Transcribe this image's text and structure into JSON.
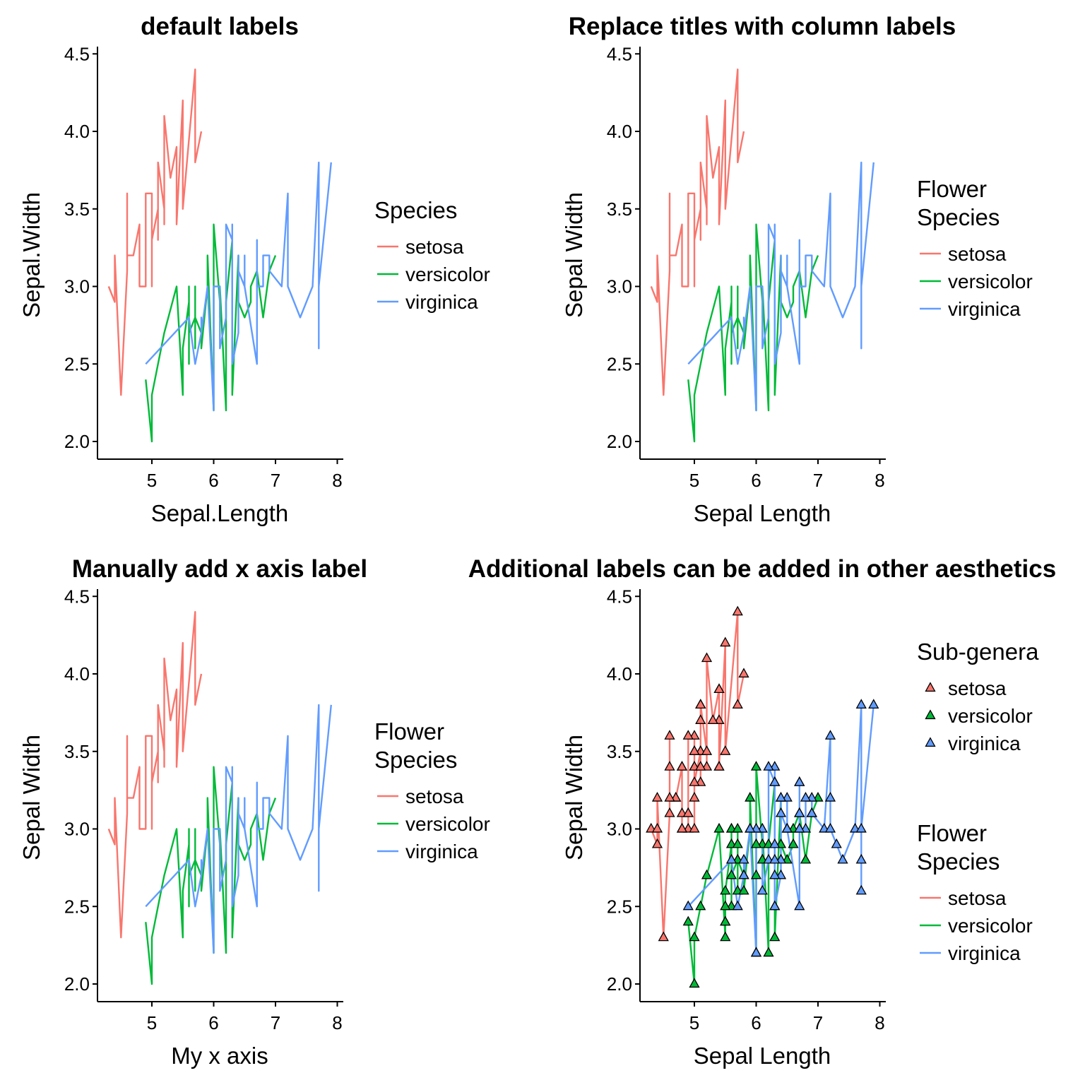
{
  "colors": {
    "setosa": "#F8766D",
    "versicolor": "#00BA38",
    "virginica": "#619CFF"
  },
  "species": [
    "setosa",
    "versicolor",
    "virginica"
  ],
  "chart_data": [
    {
      "type": "line",
      "title": "default labels",
      "xlabel": "Sepal.Length",
      "ylabel": "Sepal.Width",
      "xlim": [
        4.3,
        7.9
      ],
      "ylim": [
        2.0,
        4.4
      ],
      "x_ticks": [
        "5",
        "6",
        "7",
        "8"
      ],
      "y_ticks": [
        "2.0",
        "2.5",
        "3.0",
        "3.5",
        "4.0",
        "4.5"
      ],
      "points": false,
      "legend_position": "right",
      "legends": [
        {
          "title_lines": [
            "Species"
          ],
          "type": "line",
          "items": [
            "setosa",
            "versicolor",
            "virginica"
          ]
        }
      ]
    },
    {
      "type": "line",
      "title": "Replace titles with column labels",
      "xlabel": "Sepal Length",
      "ylabel": "Sepal Width",
      "xlim": [
        4.3,
        7.9
      ],
      "ylim": [
        2.0,
        4.4
      ],
      "x_ticks": [
        "5",
        "6",
        "7",
        "8"
      ],
      "y_ticks": [
        "2.0",
        "2.5",
        "3.0",
        "3.5",
        "4.0",
        "4.5"
      ],
      "points": false,
      "legend_position": "right",
      "legends": [
        {
          "title_lines": [
            "Flower",
            "Species"
          ],
          "type": "line",
          "items": [
            "setosa",
            "versicolor",
            "virginica"
          ]
        }
      ]
    },
    {
      "type": "line",
      "title": "Manually add x axis label",
      "xlabel": "My x axis",
      "ylabel": "Sepal Width",
      "xlim": [
        4.3,
        7.9
      ],
      "ylim": [
        2.0,
        4.4
      ],
      "x_ticks": [
        "5",
        "6",
        "7",
        "8"
      ],
      "y_ticks": [
        "2.0",
        "2.5",
        "3.0",
        "3.5",
        "4.0",
        "4.5"
      ],
      "points": false,
      "legend_position": "right",
      "legends": [
        {
          "title_lines": [
            "Flower",
            "Species"
          ],
          "type": "line",
          "items": [
            "setosa",
            "versicolor",
            "virginica"
          ]
        }
      ]
    },
    {
      "type": "line",
      "title": "Additional labels can be added in other aesthetics",
      "xlabel": "Sepal Length",
      "ylabel": "Sepal Width",
      "xlim": [
        4.3,
        7.9
      ],
      "ylim": [
        2.0,
        4.4
      ],
      "x_ticks": [
        "5",
        "6",
        "7",
        "8"
      ],
      "y_ticks": [
        "2.0",
        "2.5",
        "3.0",
        "3.5",
        "4.0",
        "4.5"
      ],
      "points": true,
      "point_shape": "triangle",
      "legend_position": "right",
      "legends": [
        {
          "title_lines": [
            "Sub-genera"
          ],
          "type": "triangle",
          "items": [
            "setosa",
            "versicolor",
            "virginica"
          ]
        },
        {
          "title_lines": [
            "Flower",
            "Species"
          ],
          "type": "line",
          "items": [
            "setosa",
            "versicolor",
            "virginica"
          ]
        }
      ]
    }
  ],
  "series": [
    {
      "name": "setosa",
      "points": [
        [
          5.1,
          3.5
        ],
        [
          4.9,
          3.0
        ],
        [
          4.7,
          3.2
        ],
        [
          4.6,
          3.1
        ],
        [
          5.0,
          3.6
        ],
        [
          5.4,
          3.9
        ],
        [
          4.6,
          3.4
        ],
        [
          5.0,
          3.4
        ],
        [
          4.4,
          2.9
        ],
        [
          4.9,
          3.1
        ],
        [
          5.4,
          3.7
        ],
        [
          4.8,
          3.4
        ],
        [
          4.8,
          3.0
        ],
        [
          4.3,
          3.0
        ],
        [
          5.8,
          4.0
        ],
        [
          5.7,
          4.4
        ],
        [
          5.4,
          3.9
        ],
        [
          5.1,
          3.5
        ],
        [
          5.7,
          3.8
        ],
        [
          5.1,
          3.8
        ],
        [
          5.4,
          3.4
        ],
        [
          5.1,
          3.7
        ],
        [
          4.6,
          3.6
        ],
        [
          5.1,
          3.3
        ],
        [
          4.8,
          3.4
        ],
        [
          5.0,
          3.0
        ],
        [
          5.0,
          3.4
        ],
        [
          5.2,
          3.5
        ],
        [
          5.2,
          3.4
        ],
        [
          4.7,
          3.2
        ],
        [
          4.8,
          3.1
        ],
        [
          5.4,
          3.4
        ],
        [
          5.2,
          4.1
        ],
        [
          5.5,
          4.2
        ],
        [
          4.9,
          3.1
        ],
        [
          5.0,
          3.2
        ],
        [
          5.5,
          3.5
        ],
        [
          4.9,
          3.6
        ],
        [
          4.4,
          3.0
        ],
        [
          5.1,
          3.4
        ],
        [
          5.0,
          3.5
        ],
        [
          4.5,
          2.3
        ],
        [
          4.4,
          3.2
        ],
        [
          5.0,
          3.5
        ],
        [
          5.1,
          3.8
        ],
        [
          4.8,
          3.0
        ],
        [
          5.1,
          3.8
        ],
        [
          4.6,
          3.2
        ],
        [
          5.3,
          3.7
        ],
        [
          5.0,
          3.3
        ]
      ]
    },
    {
      "name": "versicolor",
      "points": [
        [
          7.0,
          3.2
        ],
        [
          6.4,
          3.2
        ],
        [
          6.9,
          3.1
        ],
        [
          5.5,
          2.3
        ],
        [
          6.5,
          2.8
        ],
        [
          5.7,
          2.8
        ],
        [
          6.3,
          3.3
        ],
        [
          4.9,
          2.4
        ],
        [
          6.6,
          2.9
        ],
        [
          5.2,
          2.7
        ],
        [
          5.0,
          2.0
        ],
        [
          5.9,
          3.0
        ],
        [
          6.0,
          2.2
        ],
        [
          6.1,
          2.9
        ],
        [
          5.6,
          2.9
        ],
        [
          6.7,
          3.1
        ],
        [
          5.6,
          3.0
        ],
        [
          5.8,
          2.7
        ],
        [
          6.2,
          2.2
        ],
        [
          5.6,
          2.5
        ],
        [
          5.9,
          3.2
        ],
        [
          6.1,
          2.8
        ],
        [
          6.3,
          2.5
        ],
        [
          6.1,
          2.8
        ],
        [
          6.4,
          2.9
        ],
        [
          6.6,
          3.0
        ],
        [
          6.8,
          2.8
        ],
        [
          6.7,
          3.0
        ],
        [
          6.0,
          2.9
        ],
        [
          5.7,
          2.6
        ],
        [
          5.5,
          2.4
        ],
        [
          5.5,
          2.4
        ],
        [
          5.8,
          2.7
        ],
        [
          6.0,
          2.7
        ],
        [
          5.4,
          3.0
        ],
        [
          6.0,
          3.4
        ],
        [
          6.7,
          3.1
        ],
        [
          6.3,
          2.3
        ],
        [
          5.6,
          3.0
        ],
        [
          5.5,
          2.5
        ],
        [
          5.5,
          2.6
        ],
        [
          6.1,
          3.0
        ],
        [
          5.8,
          2.6
        ],
        [
          5.0,
          2.3
        ],
        [
          5.6,
          2.7
        ],
        [
          5.7,
          3.0
        ],
        [
          5.7,
          2.9
        ],
        [
          6.2,
          2.9
        ],
        [
          5.1,
          2.5
        ],
        [
          5.7,
          2.8
        ]
      ]
    },
    {
      "name": "virginica",
      "points": [
        [
          6.3,
          3.3
        ],
        [
          5.8,
          2.7
        ],
        [
          7.1,
          3.0
        ],
        [
          6.3,
          2.9
        ],
        [
          6.5,
          3.0
        ],
        [
          7.6,
          3.0
        ],
        [
          4.9,
          2.5
        ],
        [
          7.3,
          2.9
        ],
        [
          6.7,
          2.5
        ],
        [
          7.2,
          3.6
        ],
        [
          6.5,
          3.2
        ],
        [
          6.4,
          2.7
        ],
        [
          6.8,
          3.0
        ],
        [
          5.7,
          2.5
        ],
        [
          5.8,
          2.8
        ],
        [
          6.4,
          3.2
        ],
        [
          6.5,
          3.0
        ],
        [
          7.7,
          3.8
        ],
        [
          7.7,
          2.6
        ],
        [
          6.0,
          2.2
        ],
        [
          6.9,
          3.2
        ],
        [
          5.6,
          2.8
        ],
        [
          7.7,
          2.8
        ],
        [
          6.3,
          2.7
        ],
        [
          6.7,
          3.3
        ],
        [
          7.2,
          3.2
        ],
        [
          6.2,
          2.8
        ],
        [
          6.1,
          3.0
        ],
        [
          6.4,
          2.8
        ],
        [
          7.2,
          3.0
        ],
        [
          7.4,
          2.8
        ],
        [
          7.9,
          3.8
        ],
        [
          6.4,
          2.8
        ],
        [
          6.3,
          2.8
        ],
        [
          6.1,
          2.6
        ],
        [
          7.7,
          3.0
        ],
        [
          6.3,
          3.4
        ],
        [
          6.4,
          3.1
        ],
        [
          6.0,
          3.0
        ],
        [
          6.9,
          3.1
        ],
        [
          6.7,
          3.1
        ],
        [
          6.9,
          3.1
        ],
        [
          5.8,
          2.7
        ],
        [
          6.8,
          3.2
        ],
        [
          6.7,
          3.3
        ],
        [
          6.7,
          3.0
        ],
        [
          6.3,
          2.5
        ],
        [
          6.5,
          3.0
        ],
        [
          6.2,
          3.4
        ],
        [
          5.9,
          3.0
        ]
      ]
    }
  ]
}
